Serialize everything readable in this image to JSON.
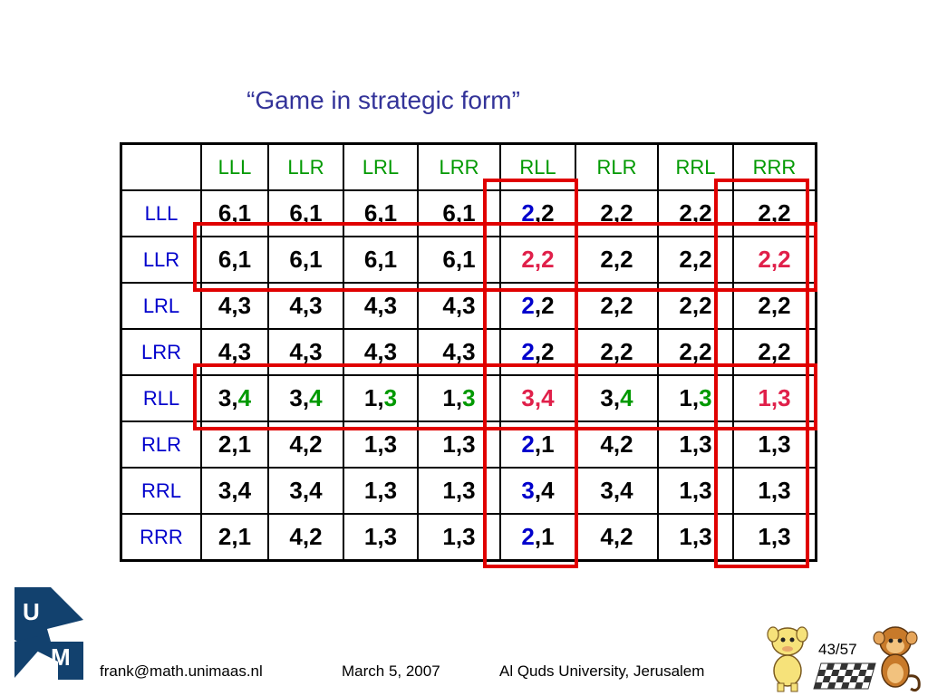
{
  "slide": {
    "title": "“Game in strategic form”",
    "page_number": "43/57",
    "footer": {
      "email": "frank@math.unimaas.nl",
      "date": "March 5, 2007",
      "venue": "Al Quds University, Jerusalem"
    },
    "logo_letters": [
      "U",
      "M"
    ]
  },
  "colors": {
    "title": "#333399",
    "column_header": "#009900",
    "row_header": "#0000cc",
    "blue_highlight": "#0000cc",
    "green_highlight": "#009900",
    "red_highlight": "#e0204a",
    "box_outline": "#e00000"
  },
  "table": {
    "columns": [
      "LLL",
      "LLR",
      "LRL",
      "LRR",
      "RLL",
      "RLR",
      "RRL",
      "RRR"
    ],
    "rows": [
      {
        "label": "LLL",
        "cells": [
          [
            "6",
            "1"
          ],
          [
            "6",
            "1"
          ],
          [
            "6",
            "1"
          ],
          [
            "6",
            "1"
          ],
          [
            "2",
            "2"
          ],
          [
            "2",
            "2"
          ],
          [
            "2",
            "2"
          ],
          [
            "2",
            "2"
          ]
        ]
      },
      {
        "label": "LLR",
        "cells": [
          [
            "6",
            "1"
          ],
          [
            "6",
            "1"
          ],
          [
            "6",
            "1"
          ],
          [
            "6",
            "1"
          ],
          [
            "2",
            "2"
          ],
          [
            "2",
            "2"
          ],
          [
            "2",
            "2"
          ],
          [
            "2",
            "2"
          ]
        ]
      },
      {
        "label": "LRL",
        "cells": [
          [
            "4",
            "3"
          ],
          [
            "4",
            "3"
          ],
          [
            "4",
            "3"
          ],
          [
            "4",
            "3"
          ],
          [
            "2",
            "2"
          ],
          [
            "2",
            "2"
          ],
          [
            "2",
            "2"
          ],
          [
            "2",
            "2"
          ]
        ]
      },
      {
        "label": "LRR",
        "cells": [
          [
            "4",
            "3"
          ],
          [
            "4",
            "3"
          ],
          [
            "4",
            "3"
          ],
          [
            "4",
            "3"
          ],
          [
            "2",
            "2"
          ],
          [
            "2",
            "2"
          ],
          [
            "2",
            "2"
          ],
          [
            "2",
            "2"
          ]
        ]
      },
      {
        "label": "RLL",
        "cells": [
          [
            "3",
            "4"
          ],
          [
            "3",
            "4"
          ],
          [
            "1",
            "3"
          ],
          [
            "1",
            "3"
          ],
          [
            "3",
            "4"
          ],
          [
            "3",
            "4"
          ],
          [
            "1",
            "3"
          ],
          [
            "1",
            "3"
          ]
        ]
      },
      {
        "label": "RLR",
        "cells": [
          [
            "2",
            "1"
          ],
          [
            "4",
            "2"
          ],
          [
            "1",
            "3"
          ],
          [
            "1",
            "3"
          ],
          [
            "2",
            "1"
          ],
          [
            "4",
            "2"
          ],
          [
            "1",
            "3"
          ],
          [
            "1",
            "3"
          ]
        ]
      },
      {
        "label": "RRL",
        "cells": [
          [
            "3",
            "4"
          ],
          [
            "3",
            "4"
          ],
          [
            "1",
            "3"
          ],
          [
            "1",
            "3"
          ],
          [
            "3",
            "4"
          ],
          [
            "3",
            "4"
          ],
          [
            "1",
            "3"
          ],
          [
            "1",
            "3"
          ]
        ]
      },
      {
        "label": "RRR",
        "cells": [
          [
            "2",
            "1"
          ],
          [
            "4",
            "2"
          ],
          [
            "1",
            "3"
          ],
          [
            "1",
            "3"
          ],
          [
            "2",
            "1"
          ],
          [
            "4",
            "2"
          ],
          [
            "1",
            "3"
          ],
          [
            "1",
            "3"
          ]
        ]
      }
    ],
    "highlighted_rows": [
      "LLR",
      "RLL"
    ],
    "highlighted_columns": [
      "RLL",
      "RRR"
    ]
  }
}
